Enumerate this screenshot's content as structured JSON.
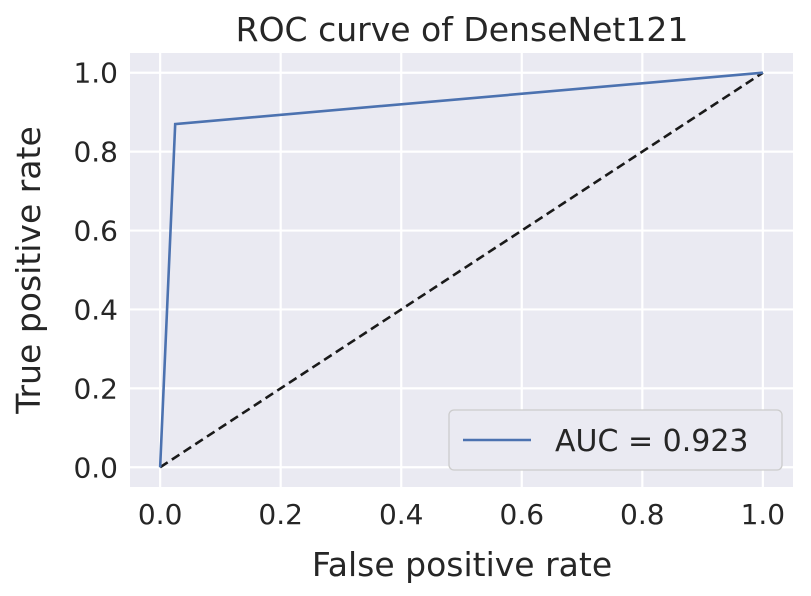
{
  "chart_data": {
    "type": "line",
    "title": "ROC curve of DenseNet121",
    "xlabel": "False positive rate",
    "ylabel": "True positive rate",
    "xlim": [
      -0.05,
      1.05
    ],
    "ylim": [
      -0.05,
      1.05
    ],
    "x_ticks": [
      0.0,
      0.2,
      0.4,
      0.6,
      0.8,
      1.0
    ],
    "y_ticks": [
      0.0,
      0.2,
      0.4,
      0.6,
      0.8,
      1.0
    ],
    "x_tick_labels": [
      "0.0",
      "0.2",
      "0.4",
      "0.6",
      "0.8",
      "1.0"
    ],
    "y_tick_labels": [
      "0.0",
      "0.2",
      "0.4",
      "0.6",
      "0.8",
      "1.0"
    ],
    "grid": true,
    "legend_position": "lower-right",
    "series": [
      {
        "name": "AUC = 0.923",
        "color": "#4c72b0",
        "style": "solid",
        "x": [
          0.0,
          0.025,
          1.0
        ],
        "y": [
          0.0,
          0.87,
          1.0
        ]
      }
    ],
    "reference_line": {
      "color": "#1a1a1a",
      "style": "dashed",
      "x": [
        0.0,
        1.0
      ],
      "y": [
        0.0,
        1.0
      ]
    },
    "colors": {
      "plot_background": "#eaeaf2",
      "grid": "#ffffff",
      "text": "#262626"
    }
  }
}
